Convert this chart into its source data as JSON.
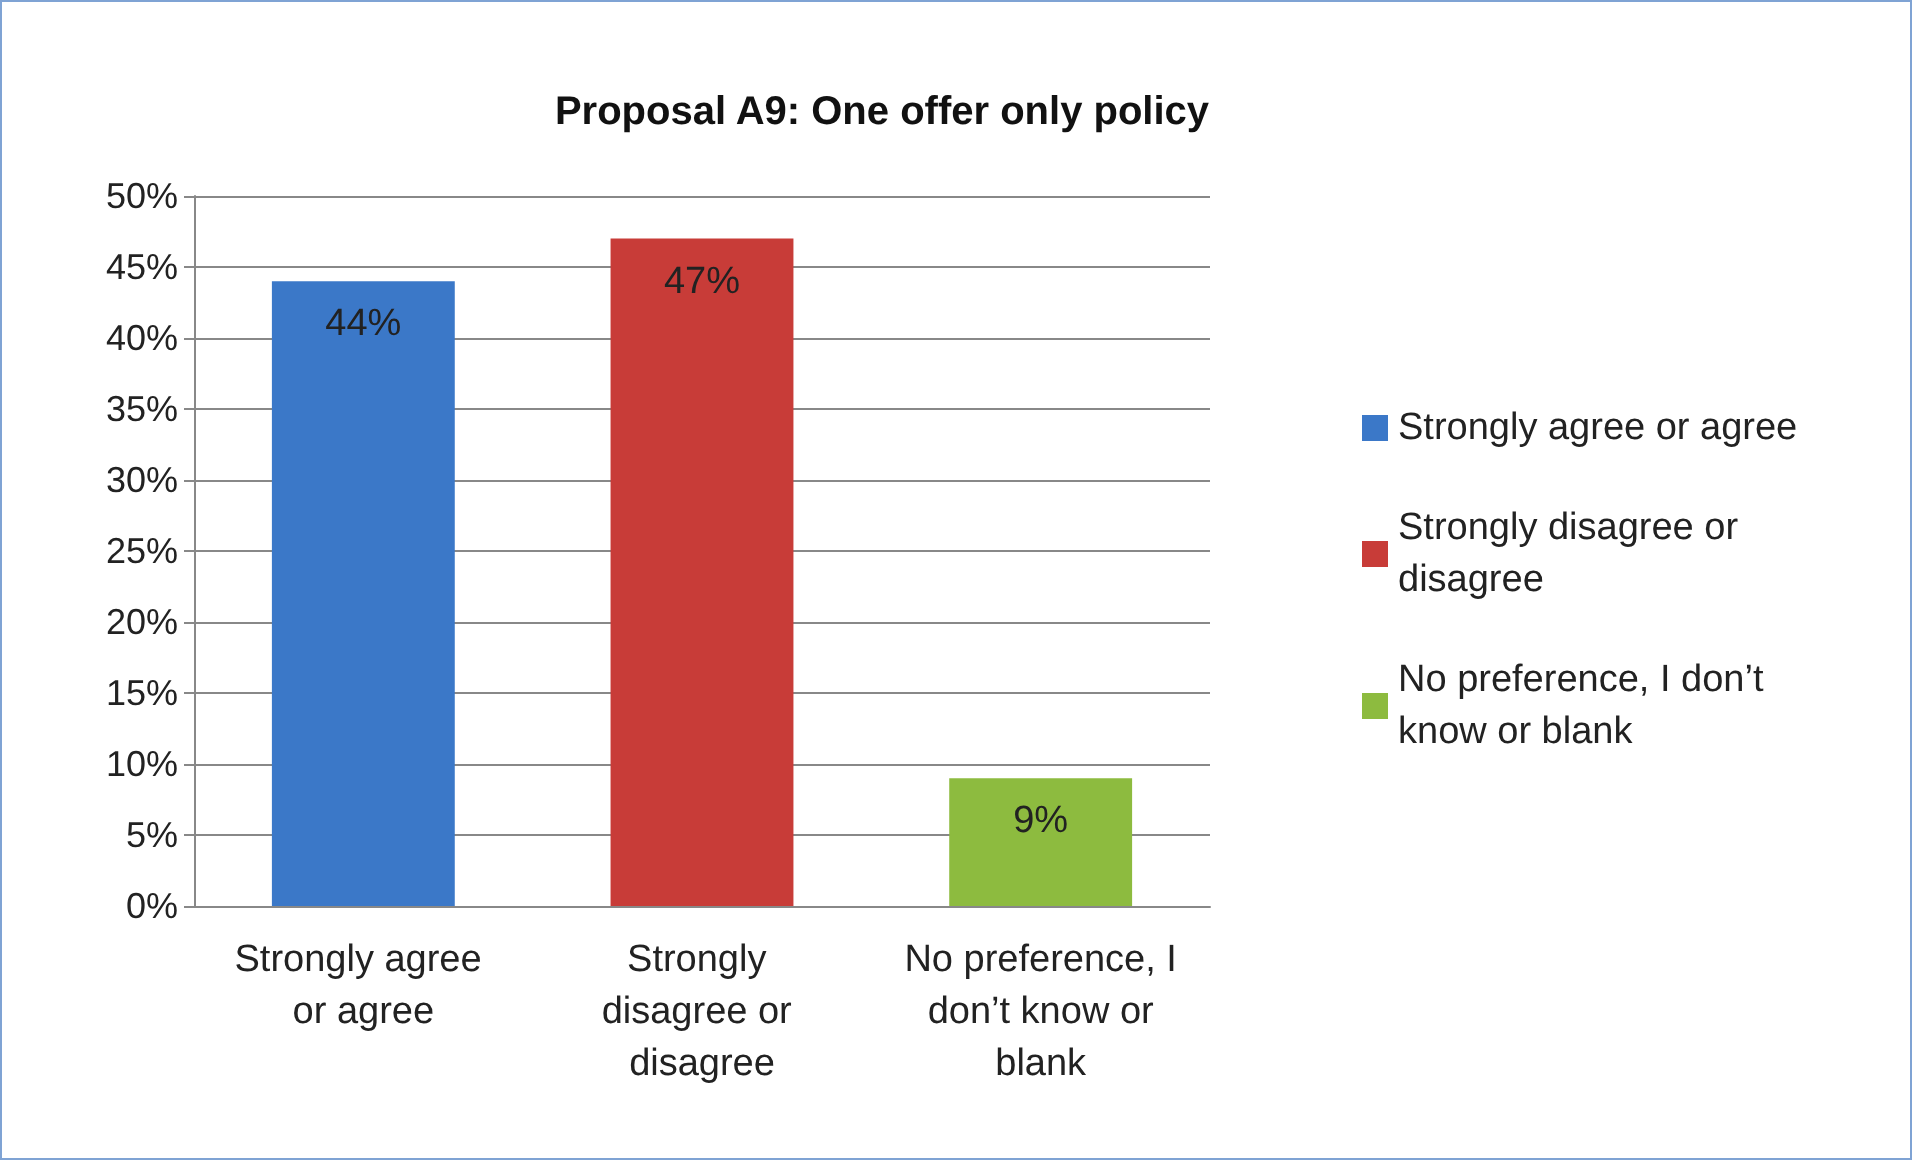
{
  "chart_data": {
    "type": "bar",
    "title": "Proposal A9: One offer only policy",
    "categories": [
      "Strongly agree or agree",
      "Strongly disagree or disagree",
      "No preference, I don’t know or blank"
    ],
    "series": [
      {
        "name": "Strongly agree or agree",
        "color": "#3b78c8",
        "values": [
          44,
          null,
          null
        ],
        "value_labels": [
          "44%",
          null,
          null
        ]
      },
      {
        "name": "Strongly disagree or disagree",
        "color": "#c83c38",
        "values": [
          null,
          47,
          null
        ],
        "value_labels": [
          null,
          "47%",
          null
        ]
      },
      {
        "name": "No preference, I don’t know or blank",
        "color": "#8dbb3f",
        "values": [
          null,
          null,
          9
        ],
        "value_labels": [
          null,
          null,
          "9%"
        ]
      }
    ],
    "ylim": [
      0,
      50
    ],
    "yticks": [
      {
        "value": 0,
        "label": "0%"
      },
      {
        "value": 5,
        "label": "5%"
      },
      {
        "value": 10,
        "label": "10%"
      },
      {
        "value": 15,
        "label": "15%"
      },
      {
        "value": 20,
        "label": "20%"
      },
      {
        "value": 25,
        "label": "25%"
      },
      {
        "value": 30,
        "label": "30%"
      },
      {
        "value": 35,
        "label": "35%"
      },
      {
        "value": 40,
        "label": "40%"
      },
      {
        "value": 45,
        "label": "45%"
      },
      {
        "value": 50,
        "label": "50%"
      }
    ],
    "grid": "y",
    "legend": "right"
  }
}
